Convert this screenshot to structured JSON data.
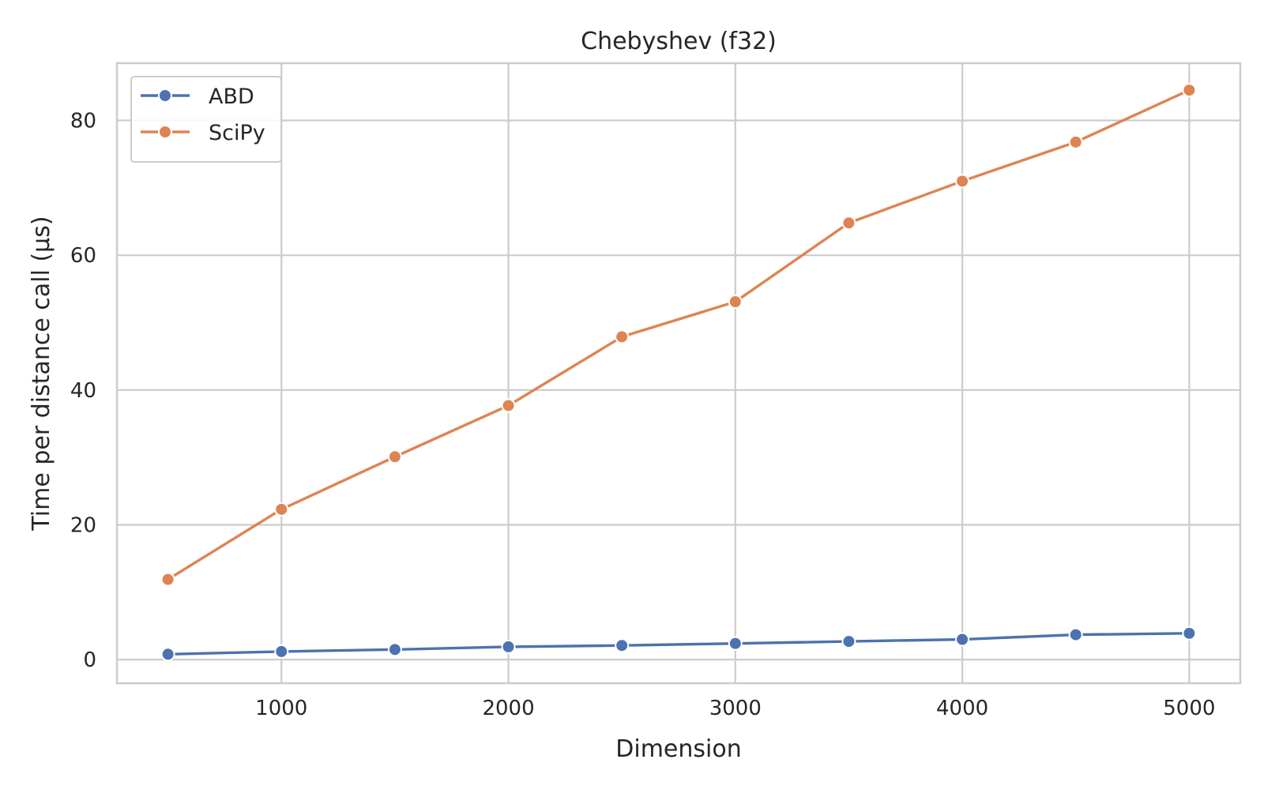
{
  "chart_data": {
    "type": "line",
    "title": "Chebyshev (f32)",
    "xlabel": "Dimension",
    "ylabel": "Time per distance call (µs)",
    "x": [
      500,
      1000,
      1500,
      2000,
      2500,
      3000,
      3500,
      4000,
      4500,
      5000
    ],
    "xlim": [
      275,
      5225
    ],
    "ylim": [
      -3.5,
      88.5
    ],
    "xticks": [
      1000,
      2000,
      3000,
      4000,
      5000
    ],
    "yticks": [
      0,
      20,
      40,
      60,
      80
    ],
    "grid": true,
    "legend_position": "top-left",
    "series": [
      {
        "name": "ABD",
        "color": "#4c72b0",
        "values": [
          0.8,
          1.2,
          1.5,
          1.9,
          2.1,
          2.4,
          2.7,
          3.0,
          3.7,
          3.9
        ]
      },
      {
        "name": "SciPy",
        "color": "#dd8452",
        "values": [
          11.9,
          22.3,
          30.1,
          37.7,
          47.9,
          53.1,
          64.8,
          71.0,
          76.8,
          84.5
        ]
      }
    ]
  }
}
